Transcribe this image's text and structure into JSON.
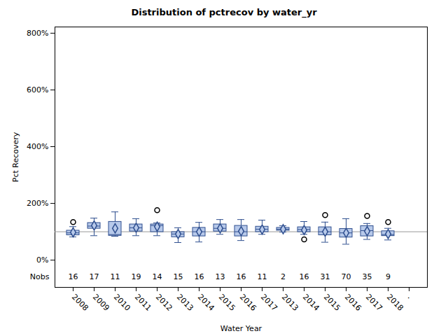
{
  "chart_data": {
    "type": "box",
    "title": "Distribution of pctrecov by water_yr",
    "x_label": "Water Year",
    "y_label": "Pct Recovery",
    "categories": [
      "2008",
      "2009",
      "2010",
      "2011",
      "2012",
      "2013",
      "2014",
      "2015",
      "2016",
      "2017",
      "2013",
      "2014",
      "2015",
      "2016",
      "2017",
      "2018",
      "."
    ],
    "min": [
      82,
      86,
      84,
      86,
      86,
      62,
      64,
      91,
      69,
      91,
      99,
      91,
      63,
      56,
      73,
      71,
      null
    ],
    "q1": [
      88,
      111,
      86,
      101,
      99,
      81,
      84,
      101,
      84,
      99,
      104,
      99,
      88,
      80,
      84,
      85,
      null
    ],
    "median": [
      96,
      120,
      90,
      114,
      122,
      92,
      100,
      112,
      100,
      109,
      109,
      108,
      100,
      96,
      104,
      90,
      null
    ],
    "q3": [
      104,
      131,
      135,
      126,
      126,
      99,
      114,
      126,
      121,
      118,
      114,
      116,
      116,
      110,
      120,
      102,
      null
    ],
    "max": [
      118,
      148,
      170,
      146,
      131,
      114,
      133,
      143,
      143,
      141,
      121,
      136,
      134,
      146,
      129,
      112,
      null
    ],
    "mean": [
      98,
      122,
      112,
      114,
      118,
      92,
      100,
      112,
      102,
      108,
      109,
      106,
      100,
      96,
      102,
      92,
      null
    ],
    "outliers": [
      [
        134
      ],
      [],
      [],
      [],
      [
        176
      ],
      [],
      [],
      [],
      [],
      [],
      [],
      [
        73
      ],
      [
        159
      ],
      [],
      [
        156
      ],
      [
        134
      ],
      null
    ],
    "nobs_label": "Nobs",
    "nobs": [
      16,
      17,
      11,
      19,
      14,
      15,
      16,
      13,
      16,
      11,
      2,
      16,
      31,
      70,
      35,
      9,
      null
    ],
    "reference_line": 100,
    "color": "#b7c9ea",
    "ylim": [
      -96,
      822
    ],
    "yticks": [
      {
        "value": 0,
        "label": "0%"
      },
      {
        "value": 200,
        "label": "200%"
      },
      {
        "value": 400,
        "label": "400%"
      },
      {
        "value": 600,
        "label": "600%"
      },
      {
        "value": 800,
        "label": "800%"
      }
    ]
  }
}
